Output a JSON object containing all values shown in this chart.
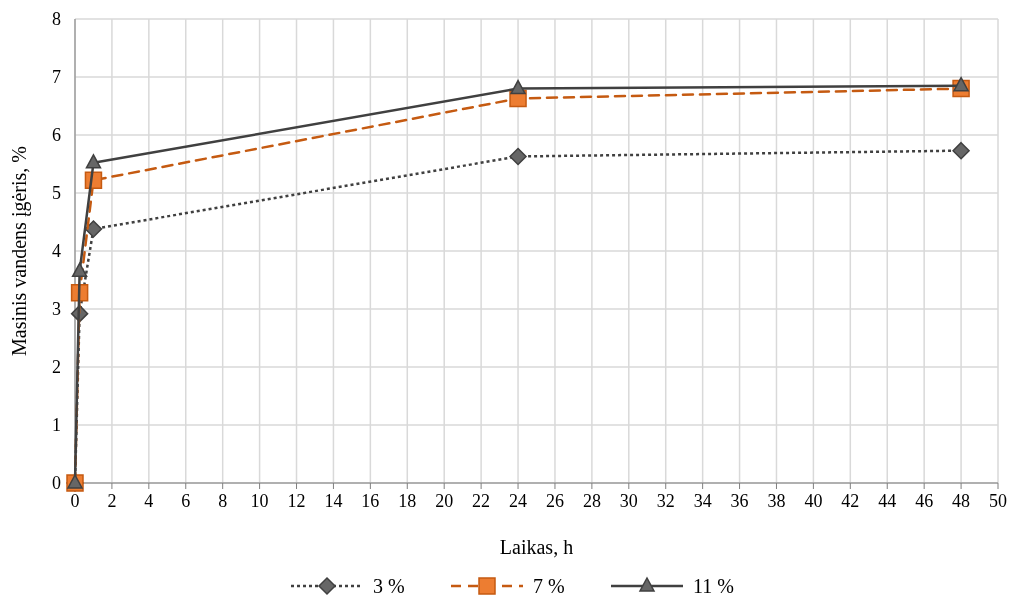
{
  "chart_data": {
    "type": "line",
    "xlabel": "Laikas, h",
    "ylabel": "Masinis vandens įgėris, %",
    "x": [
      0,
      0.25,
      1,
      24,
      48
    ],
    "xlim": [
      0,
      50
    ],
    "xticks": [
      0,
      2,
      4,
      6,
      8,
      10,
      12,
      14,
      16,
      18,
      20,
      22,
      24,
      26,
      28,
      30,
      32,
      34,
      36,
      38,
      40,
      42,
      44,
      46,
      48,
      50
    ],
    "ylim": [
      0,
      8
    ],
    "yticks": [
      0,
      1,
      2,
      3,
      4,
      5,
      6,
      7,
      8
    ],
    "grid": true,
    "legend": "bottom",
    "series": [
      {
        "name": "3 %",
        "color": "#404040",
        "values": [
          0,
          2.92,
          4.38,
          5.63,
          5.73
        ],
        "marker": "diamond",
        "line_style": "dotted"
      },
      {
        "name": "7 %",
        "color": "#c55a11",
        "values": [
          0,
          3.28,
          5.22,
          6.63,
          6.8
        ],
        "marker": "square",
        "line_style": "dashed"
      },
      {
        "name": "11 %",
        "color": "#404040",
        "values": [
          0,
          3.65,
          5.52,
          6.8,
          6.85
        ],
        "marker": "triangle",
        "line_style": "solid"
      }
    ]
  }
}
